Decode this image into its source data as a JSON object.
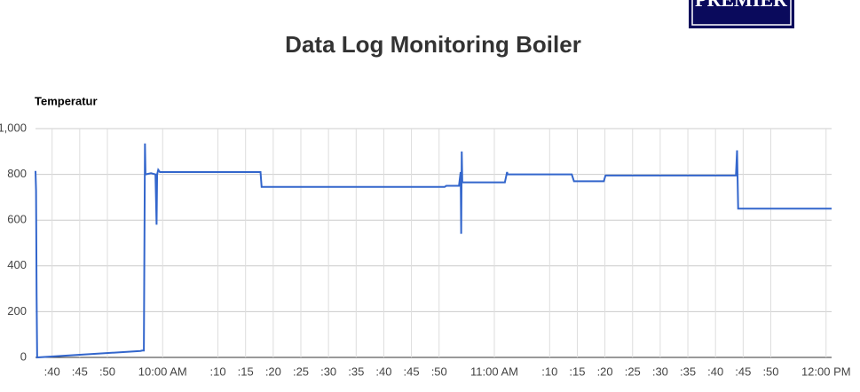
{
  "logo": "PREMIER",
  "header": {
    "title": "Data Log Monitoring Boiler"
  },
  "chart_data": {
    "type": "line",
    "title": "Temperatur",
    "x": [
      577.0,
      577.1,
      577.2,
      577.3,
      596.0,
      596.3,
      596.6,
      596.8,
      596.9,
      597.9,
      598.7,
      598.9,
      599.0,
      599.2,
      599.5,
      617.7,
      617.9,
      651.0,
      651.3,
      653.6,
      653.9,
      654.0,
      654.1,
      654.2,
      661.9,
      662.3,
      662.4,
      674.0,
      674.4,
      679.8,
      680.1,
      703.7,
      703.9,
      704.1,
      721.0
    ],
    "series": [
      {
        "name": "Temperatur",
        "color": "#3366cc",
        "values": [
          815,
          730,
          270,
          0,
          28,
          30,
          30,
          935,
          800,
          805,
          800,
          580,
          800,
          820,
          810,
          810,
          745,
          745,
          750,
          750,
          810,
          540,
          900,
          765,
          765,
          810,
          800,
          800,
          770,
          770,
          795,
          795,
          905,
          650,
          650
        ]
      }
    ],
    "xlim": [
      577,
      721
    ],
    "xticks": [
      {
        "value": 580,
        "label": ":40"
      },
      {
        "value": 585,
        "label": ":45"
      },
      {
        "value": 590,
        "label": ":50"
      },
      {
        "value": 600,
        "label": "10:00 AM"
      },
      {
        "value": 610,
        "label": ":10"
      },
      {
        "value": 615,
        "label": ":15"
      },
      {
        "value": 620,
        "label": ":20"
      },
      {
        "value": 625,
        "label": ":25"
      },
      {
        "value": 630,
        "label": ":30"
      },
      {
        "value": 635,
        "label": ":35"
      },
      {
        "value": 640,
        "label": ":40"
      },
      {
        "value": 645,
        "label": ":45"
      },
      {
        "value": 650,
        "label": ":50"
      },
      {
        "value": 660,
        "label": "11:00 AM"
      },
      {
        "value": 670,
        "label": ":10"
      },
      {
        "value": 675,
        "label": ":15"
      },
      {
        "value": 680,
        "label": ":20"
      },
      {
        "value": 685,
        "label": ":25"
      },
      {
        "value": 690,
        "label": ":30"
      },
      {
        "value": 695,
        "label": ":35"
      },
      {
        "value": 700,
        "label": ":40"
      },
      {
        "value": 705,
        "label": ":45"
      },
      {
        "value": 710,
        "label": ":50"
      },
      {
        "value": 720,
        "label": "12:00 PM"
      }
    ],
    "ylim": [
      0,
      1000
    ],
    "yticks": [
      0,
      200,
      400,
      600,
      800,
      {
        "value": 1000,
        "label": "1,000"
      }
    ],
    "grid": true
  }
}
